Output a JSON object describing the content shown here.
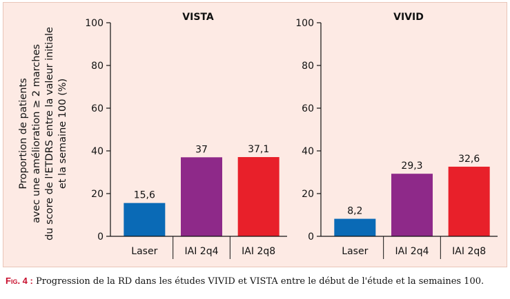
{
  "chart_data": [
    {
      "type": "bar",
      "title": "VISTA",
      "categories": [
        "Laser",
        "IAI 2q4",
        "IAI 2q8"
      ],
      "values": [
        15.6,
        37,
        37.1
      ],
      "value_labels": [
        "15,6",
        "37",
        "37,1"
      ],
      "colors": [
        "#0a6ab6",
        "#8e2989",
        "#e8202a"
      ],
      "ylim": [
        0,
        100
      ],
      "yticks": [
        0,
        20,
        40,
        60,
        80,
        100
      ],
      "grid": false
    },
    {
      "type": "bar",
      "title": "VIVID",
      "categories": [
        "Laser",
        "IAI 2q4",
        "IAI 2q8"
      ],
      "values": [
        8.2,
        29.3,
        32.6
      ],
      "value_labels": [
        "8,2",
        "29,3",
        "32,6"
      ],
      "colors": [
        "#0a6ab6",
        "#8e2989",
        "#e8202a"
      ],
      "ylim": [
        0,
        100
      ],
      "yticks": [
        0,
        20,
        40,
        60,
        80,
        100
      ],
      "grid": false
    }
  ],
  "ylabel_lines": [
    "Proportion de patients",
    "avec une amélioration ≥ 2 marches",
    "du score de l'ETDRS entre la valeur initiale",
    "et la semaine 100 (%)"
  ],
  "caption": {
    "label": "Fig. 4 :",
    "text": " Progression de la RD dans les études VIVID et VISTA entre le début de l'étude et la semaines 100."
  }
}
